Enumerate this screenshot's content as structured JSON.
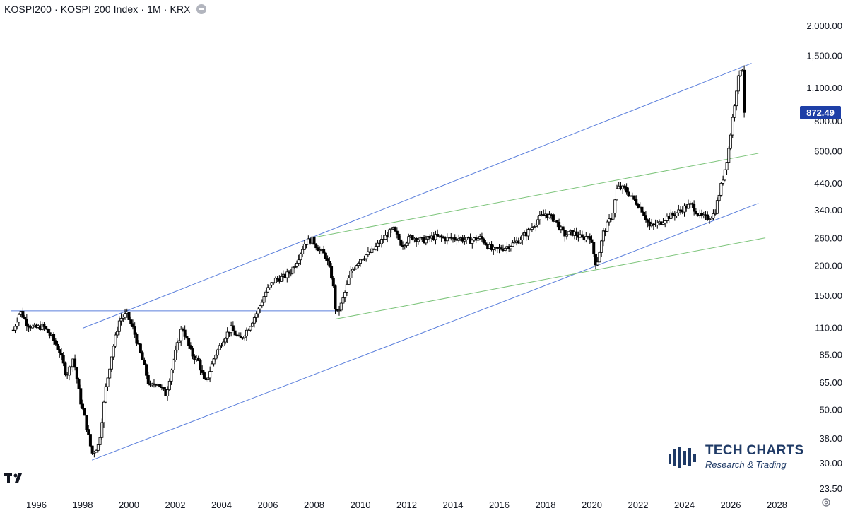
{
  "header": {
    "title": "KOSPI200 · KOSPI 200 Index · 1M · KRX",
    "collapse_icon": "minus-icon"
  },
  "price_badge": {
    "value": "872.49",
    "color": "#1e3fa7"
  },
  "tradingview_logo": "TV",
  "watermark": {
    "title": "TECH CHARTS",
    "subtitle": "Research & Trading"
  },
  "colors": {
    "channel": "#5b7fdc",
    "support": "#7cc47a",
    "candle_up": "#ffffff",
    "candle_down": "#000000"
  },
  "chart_data": {
    "type": "candlestick",
    "title": "KOSPI200 · KOSPI 200 Index · 1M · KRX",
    "y_scale": "log",
    "ylim": [
      23.5,
      2550
    ],
    "xlim": [
      1994.9,
      2029.0
    ],
    "x_ticks": [
      "1996",
      "1998",
      "2000",
      "2002",
      "2004",
      "2006",
      "2008",
      "2010",
      "2012",
      "2014",
      "2016",
      "2018",
      "2020",
      "2022",
      "2024",
      "2026",
      "2028"
    ],
    "y_ticks": [
      "2,000.00",
      "1,500.00",
      "1,100.00",
      "800.00",
      "600.00",
      "440.00",
      "340.00",
      "260.00",
      "200.00",
      "150.00",
      "110.00",
      "85.00",
      "65.00",
      "50.00",
      "38.00",
      "30.00",
      "23.50"
    ],
    "last_price": 872.49,
    "price_path": [
      [
        1995.0,
        108
      ],
      [
        1995.3,
        130
      ],
      [
        1995.6,
        115
      ],
      [
        1995.9,
        110
      ],
      [
        1996.3,
        112
      ],
      [
        1996.7,
        100
      ],
      [
        1997.0,
        88
      ],
      [
        1997.3,
        70
      ],
      [
        1997.6,
        83
      ],
      [
        1997.9,
        55
      ],
      [
        1998.1,
        46
      ],
      [
        1998.4,
        33
      ],
      [
        1998.7,
        36
      ],
      [
        1999.0,
        62
      ],
      [
        1999.3,
        90
      ],
      [
        1999.6,
        120
      ],
      [
        1999.9,
        126
      ],
      [
        2000.2,
        108
      ],
      [
        2000.6,
        80
      ],
      [
        2000.9,
        62
      ],
      [
        2001.2,
        66
      ],
      [
        2001.6,
        58
      ],
      [
        2001.9,
        80
      ],
      [
        2002.3,
        112
      ],
      [
        2002.7,
        86
      ],
      [
        2003.0,
        80
      ],
      [
        2003.3,
        64
      ],
      [
        2003.7,
        84
      ],
      [
        2004.1,
        100
      ],
      [
        2004.4,
        110
      ],
      [
        2004.8,
        98
      ],
      [
        2005.2,
        112
      ],
      [
        2005.6,
        132
      ],
      [
        2005.9,
        155
      ],
      [
        2006.3,
        175
      ],
      [
        2006.7,
        180
      ],
      [
        2007.0,
        190
      ],
      [
        2007.3,
        215
      ],
      [
        2007.6,
        250
      ],
      [
        2007.9,
        258
      ],
      [
        2008.2,
        235
      ],
      [
        2008.5,
        220
      ],
      [
        2008.8,
        175
      ],
      [
        2008.95,
        124
      ],
      [
        2009.2,
        140
      ],
      [
        2009.6,
        190
      ],
      [
        2010.0,
        215
      ],
      [
        2010.5,
        230
      ],
      [
        2011.0,
        260
      ],
      [
        2011.4,
        285
      ],
      [
        2011.8,
        245
      ],
      [
        2012.2,
        265
      ],
      [
        2012.7,
        255
      ],
      [
        2013.2,
        265
      ],
      [
        2013.7,
        260
      ],
      [
        2014.2,
        262
      ],
      [
        2014.7,
        255
      ],
      [
        2015.2,
        262
      ],
      [
        2015.7,
        232
      ],
      [
        2016.2,
        238
      ],
      [
        2016.7,
        250
      ],
      [
        2017.2,
        275
      ],
      [
        2017.7,
        315
      ],
      [
        2018.0,
        330
      ],
      [
        2018.4,
        312
      ],
      [
        2018.8,
        270
      ],
      [
        2019.2,
        275
      ],
      [
        2019.6,
        260
      ],
      [
        2019.9,
        270
      ],
      [
        2020.2,
        200
      ],
      [
        2020.5,
        275
      ],
      [
        2020.9,
        330
      ],
      [
        2021.1,
        425
      ],
      [
        2021.4,
        420
      ],
      [
        2021.8,
        380
      ],
      [
        2022.2,
        340
      ],
      [
        2022.5,
        292
      ],
      [
        2022.9,
        300
      ],
      [
        2023.2,
        318
      ],
      [
        2023.6,
        330
      ],
      [
        2024.0,
        350
      ],
      [
        2024.3,
        360
      ],
      [
        2024.7,
        320
      ],
      [
        2025.0,
        318
      ],
      [
        2025.3,
        330
      ],
      [
        2025.5,
        400
      ],
      [
        2025.7,
        480
      ],
      [
        2025.9,
        600
      ],
      [
        2026.1,
        850
      ],
      [
        2026.25,
        1100
      ],
      [
        2026.45,
        1380
      ],
      [
        2026.55,
        1300
      ],
      [
        2026.62,
        872.49
      ]
    ],
    "trendlines": [
      {
        "name": "upper-channel",
        "color": "#5b7fdc",
        "points": [
          [
            1998.0,
            110
          ],
          [
            2026.9,
            1400
          ]
        ]
      },
      {
        "name": "lower-channel",
        "color": "#5b7fdc",
        "points": [
          [
            1998.4,
            31
          ],
          [
            2027.2,
            365
          ]
        ]
      },
      {
        "name": "horizontal-resistance",
        "color": "#5b7fdc",
        "points": [
          [
            1994.9,
            130
          ],
          [
            2009.0,
            130
          ]
        ]
      },
      {
        "name": "upper-green",
        "color": "#7cc47a",
        "points": [
          [
            2007.9,
            262
          ],
          [
            2027.2,
            590
          ]
        ]
      },
      {
        "name": "lower-green",
        "color": "#7cc47a",
        "points": [
          [
            2008.9,
            120
          ],
          [
            2027.5,
            262
          ]
        ]
      }
    ]
  }
}
